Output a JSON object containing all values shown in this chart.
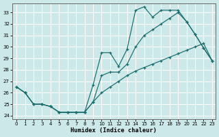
{
  "xlabel": "Humidex (Indice chaleur)",
  "bg_color": "#cce8e8",
  "grid_color": "#ffffff",
  "line_color": "#1a6b6b",
  "xlim_min": -0.5,
  "xlim_max": 23.4,
  "ylim_min": 23.7,
  "ylim_max": 33.8,
  "yticks": [
    24,
    25,
    26,
    27,
    28,
    29,
    30,
    31,
    32,
    33
  ],
  "xticks": [
    0,
    1,
    2,
    3,
    4,
    5,
    6,
    7,
    8,
    9,
    10,
    11,
    12,
    13,
    14,
    15,
    16,
    17,
    18,
    19,
    20,
    21,
    22,
    23
  ],
  "line1_x": [
    0,
    1,
    2,
    3,
    4,
    5,
    6,
    7,
    8,
    9,
    10,
    11,
    12,
    13,
    14,
    15,
    16,
    17,
    18,
    19,
    20,
    21,
    22,
    23
  ],
  "line1_y": [
    26.5,
    26.0,
    25.0,
    25.0,
    24.8,
    24.3,
    24.3,
    24.3,
    24.3,
    26.7,
    29.5,
    29.5,
    28.3,
    29.8,
    33.2,
    33.5,
    32.6,
    33.2,
    33.2,
    33.2,
    32.2,
    31.1,
    29.9,
    28.8
  ],
  "line2_x": [
    0,
    1,
    2,
    3,
    4,
    5,
    6,
    7,
    8,
    9,
    10,
    11,
    12,
    13,
    14,
    15,
    16,
    17,
    18,
    19,
    20,
    21,
    22,
    23
  ],
  "line2_y": [
    26.5,
    26.0,
    25.0,
    25.0,
    24.8,
    24.3,
    24.3,
    24.3,
    24.3,
    25.2,
    27.5,
    27.8,
    27.8,
    28.5,
    30.0,
    31.0,
    31.5,
    32.0,
    32.5,
    33.0,
    32.2,
    31.1,
    29.9,
    28.8
  ],
  "line3_x": [
    0,
    1,
    2,
    3,
    4,
    5,
    6,
    7,
    8,
    9,
    10,
    11,
    12,
    13,
    14,
    15,
    16,
    17,
    18,
    19,
    20,
    21,
    22,
    23
  ],
  "line3_y": [
    26.5,
    26.0,
    25.0,
    25.0,
    24.8,
    24.3,
    24.3,
    24.3,
    24.3,
    25.2,
    26.0,
    26.5,
    27.0,
    27.5,
    27.9,
    28.2,
    28.5,
    28.8,
    29.1,
    29.4,
    29.7,
    30.0,
    30.3,
    28.8
  ]
}
